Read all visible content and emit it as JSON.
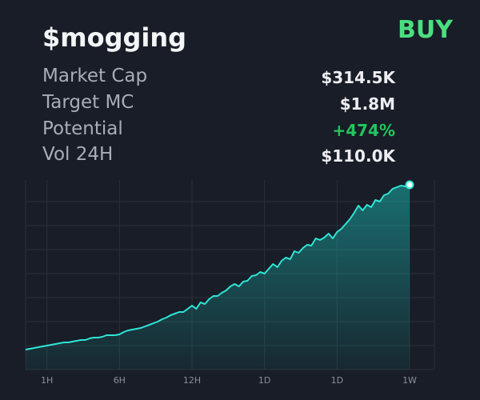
{
  "header": {
    "title": "$mogging",
    "action": "BUY"
  },
  "stats": [
    {
      "label": "Market Cap",
      "value": "$314.5K"
    },
    {
      "label": "Target MC",
      "value": "$1.8M"
    },
    {
      "label": "Potential",
      "value": "+474%"
    },
    {
      "label": "Vol 24H",
      "value": "$110.0K"
    }
  ],
  "chart_data": {
    "type": "area",
    "color": "#2ee6d6",
    "categories": [
      null,
      null,
      null,
      null,
      null,
      "1H",
      null,
      null,
      null,
      null,
      null,
      null,
      null,
      null,
      null,
      null,
      null,
      null,
      null,
      null,
      null,
      null,
      "6H",
      null,
      null,
      null,
      null,
      null,
      null,
      null,
      null,
      null,
      null,
      null,
      null,
      null,
      null,
      null,
      null,
      "12H",
      null,
      null,
      null,
      null,
      null,
      null,
      null,
      null,
      null,
      null,
      null,
      null,
      null,
      null,
      null,
      null,
      "1D",
      null,
      null,
      null,
      null,
      null,
      null,
      null,
      null,
      null,
      null,
      null,
      null,
      null,
      null,
      null,
      null,
      "1D",
      null,
      null,
      null,
      null,
      null,
      null,
      null,
      null,
      null,
      null,
      null,
      null,
      null,
      null,
      null,
      null,
      "1W"
    ],
    "values": [
      25,
      26,
      27,
      28,
      29,
      30,
      31,
      32,
      33,
      34,
      34,
      35,
      36,
      37,
      37,
      39,
      40,
      40,
      41,
      43,
      43,
      43,
      44,
      47,
      49,
      50,
      51,
      52,
      54,
      56,
      58,
      60,
      63,
      65,
      68,
      70,
      72,
      72,
      76,
      80,
      76,
      84,
      82,
      88,
      92,
      92,
      96,
      99,
      104,
      107,
      104,
      110,
      111,
      117,
      118,
      122,
      120,
      126,
      132,
      128,
      136,
      140,
      138,
      148,
      146,
      152,
      156,
      155,
      164,
      162,
      165,
      170,
      164,
      172,
      176,
      182,
      188,
      196,
      205,
      199,
      206,
      203,
      212,
      210,
      218,
      220,
      226,
      228,
      230,
      229,
      231
    ],
    "ylim": [
      0,
      237
    ]
  }
}
